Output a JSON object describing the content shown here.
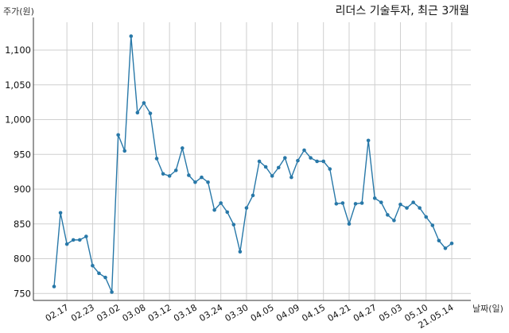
{
  "chart_data": {
    "type": "line",
    "title": "리더스 기술투자, 최근 3개월",
    "ylabel": "주가(원)",
    "xlabel": "날짜(일)",
    "ylim": [
      740,
      1140
    ],
    "yticks": [
      750,
      800,
      850,
      900,
      950,
      1000,
      1050,
      1100
    ],
    "ytick_labels": [
      "750",
      "800",
      "850",
      "900",
      "950",
      "1,000",
      "1,050",
      "1,100"
    ],
    "grid": true,
    "colors": {
      "line": "#2878a8",
      "marker": "#2878a8",
      "grid": "#cfcfcf"
    },
    "x_tick_labels": [
      "02.17",
      "02.23",
      "03.02",
      "03.08",
      "03.12",
      "03.18",
      "03.24",
      "03.30",
      "04.05",
      "04.09",
      "04.15",
      "04.21",
      "04.27",
      "05.03",
      "05.10",
      "21.05.14"
    ],
    "x_tick_point_index": [
      2,
      6,
      10,
      14,
      18,
      22,
      26,
      30,
      34,
      38,
      42,
      46,
      50,
      54,
      58,
      62
    ],
    "series": [
      {
        "values": [
          760,
          866,
          821,
          827,
          827,
          832,
          790,
          779,
          773,
          752,
          978,
          955,
          1120,
          1010,
          1024,
          1009,
          944,
          922,
          919,
          927,
          959,
          920,
          910,
          917,
          910,
          870,
          880,
          867,
          849,
          810,
          873,
          891,
          940,
          932,
          919,
          931,
          945,
          917,
          941,
          956,
          945,
          940,
          940,
          929,
          879,
          880,
          850,
          879,
          880,
          970,
          887,
          881,
          863,
          855,
          878,
          873,
          881,
          873,
          860,
          848,
          826,
          815,
          822
        ]
      }
    ]
  }
}
